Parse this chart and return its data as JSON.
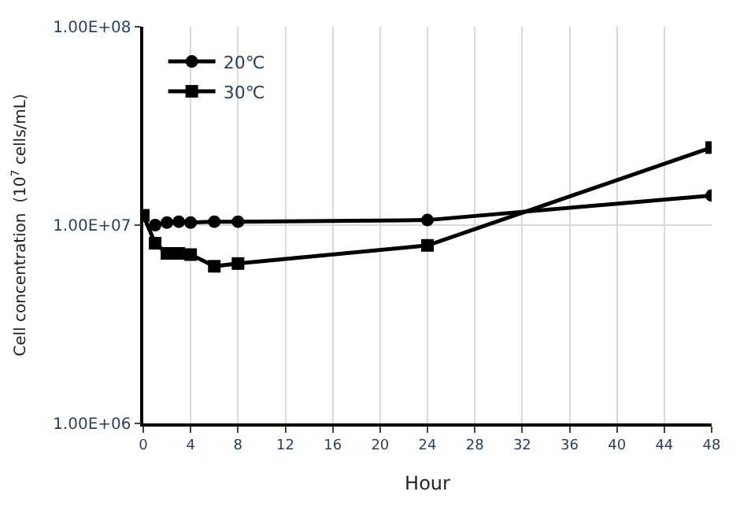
{
  "chart_data": {
    "type": "line",
    "xlabel": "Hour",
    "ylabel": "Cell concentration  (10$^{7}$ cells/mL)",
    "log": "y",
    "xlim": [
      0,
      48
    ],
    "xticks": [
      0,
      4,
      8,
      12,
      16,
      20,
      24,
      28,
      32,
      36,
      40,
      44,
      48
    ],
    "ylim": [
      1000000,
      100000000
    ],
    "yticks": [
      {
        "value": 1000000,
        "label": "1.00E+06"
      },
      {
        "value": 10000000,
        "label": "1.00E+07"
      },
      {
        "value": 100000000,
        "label": "1.00E+08"
      }
    ],
    "grid": true,
    "legend": "top left",
    "line_style": "solid",
    "series": [
      {
        "name": "20℃",
        "color": "#000000",
        "marker": "circle",
        "x": [
          1,
          2,
          3,
          4,
          6,
          8,
          24,
          48
        ],
        "values": [
          10000000,
          10300000,
          10400000,
          10300000,
          10400000,
          10400000,
          10600000,
          14100000
        ]
      },
      {
        "name": "30℃",
        "color": "#000000",
        "marker": "square",
        "x": [
          0,
          1,
          2,
          3,
          4,
          6,
          8,
          24,
          48
        ],
        "values": [
          11200000,
          8100000,
          7200000,
          7200000,
          7100000,
          6200000,
          6400000,
          7900000,
          24600000
        ]
      }
    ]
  }
}
